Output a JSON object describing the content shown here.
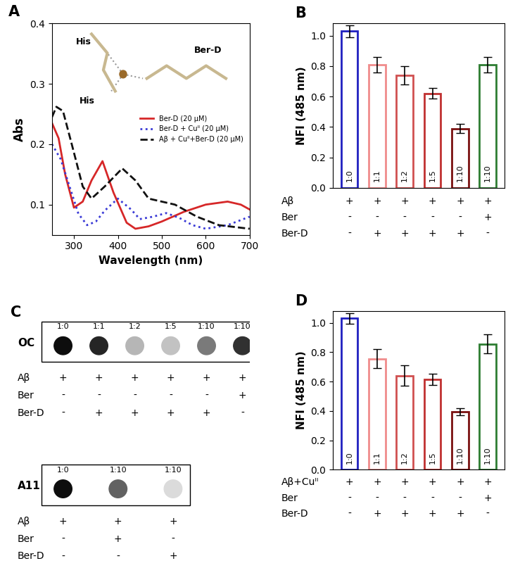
{
  "chart_data": [
    {
      "type": "line",
      "title": "A",
      "x_label": "Wavelength (nm)",
      "y_label": "Abs",
      "xlim": [
        250,
        700
      ],
      "xticks": [
        300,
        400,
        500,
        600,
        700
      ],
      "ylim": [
        0.05,
        0.4
      ],
      "yticks": [
        {
          "value": 0.1,
          "label": "0.1"
        },
        {
          "value": 0.2,
          "label": "0.2"
        },
        {
          "value": 0.3,
          "label": "0.3"
        },
        {
          "value": 0.4,
          "label": "0.4"
        }
      ],
      "legend": "center right",
      "annotations": [
        "His",
        "His",
        "Ber-D"
      ],
      "series": [
        {
          "name": "Ber-D (20 µM)",
          "color": "#d62728",
          "line_style": "solid",
          "x": [
            250,
            265,
            280,
            300,
            320,
            340,
            365,
            390,
            420,
            440,
            470,
            500,
            550,
            600,
            650,
            680,
            700
          ],
          "values": [
            0.235,
            0.21,
            0.15,
            0.095,
            0.105,
            0.14,
            0.172,
            0.12,
            0.07,
            0.06,
            0.064,
            0.072,
            0.088,
            0.1,
            0.105,
            0.1,
            0.092
          ]
        },
        {
          "name": "Ber-D + Cuᴵᴵ (20 µM)",
          "color": "#3a3ad6",
          "line_style": "dotted",
          "x": [
            250,
            270,
            290,
            310,
            330,
            350,
            370,
            400,
            430,
            450,
            480,
            510,
            540,
            570,
            600,
            650,
            700
          ],
          "values": [
            0.2,
            0.175,
            0.13,
            0.085,
            0.066,
            0.072,
            0.09,
            0.11,
            0.092,
            0.076,
            0.08,
            0.086,
            0.078,
            0.066,
            0.06,
            0.066,
            0.08
          ]
        },
        {
          "name": "Aβ + Cuᴵᴵ+Ber-D (20 µM)",
          "color": "#111111",
          "line_style": "dashed",
          "x": [
            250,
            260,
            275,
            295,
            320,
            340,
            370,
            410,
            440,
            470,
            500,
            530,
            580,
            630,
            700
          ],
          "values": [
            0.245,
            0.262,
            0.255,
            0.2,
            0.13,
            0.11,
            0.13,
            0.16,
            0.14,
            0.11,
            0.105,
            0.1,
            0.08,
            0.066,
            0.06
          ]
        }
      ]
    },
    {
      "type": "bar",
      "title": "B",
      "y_label": "NFI (485 nm)",
      "tick_labels": "y",
      "categories": [
        "1:0",
        "1:1",
        "1:2",
        "1:5",
        "1:10",
        "1:10"
      ],
      "values": [
        1.03,
        0.81,
        0.74,
        0.62,
        0.39,
        0.81
      ],
      "errors": [
        0.04,
        0.05,
        0.06,
        0.035,
        0.03,
        0.05
      ],
      "colors": [
        "#2020c0",
        "#f08c8c",
        "#d05050",
        "#c03030",
        "#7a1010",
        "#2e7d32"
      ],
      "ylim": [
        0,
        1.08
      ],
      "yticks": [
        {
          "value": 0,
          "label": "0.0"
        },
        {
          "value": 0.2,
          "label": "0.2"
        },
        {
          "value": 0.4,
          "label": "0.4"
        },
        {
          "value": 0.6,
          "label": "0.6"
        },
        {
          "value": 0.8,
          "label": "0.8"
        },
        {
          "value": 1,
          "label": "1.0"
        }
      ],
      "rows": [
        {
          "name": "Aβ",
          "signs": [
            "+",
            "+",
            "+",
            "+",
            "+",
            "+"
          ]
        },
        {
          "name": "Ber",
          "signs": [
            "-",
            "-",
            "-",
            "-",
            "-",
            "+"
          ]
        },
        {
          "name": "Ber-D",
          "signs": [
            "-",
            "+",
            "+",
            "+",
            "+",
            "-"
          ]
        }
      ]
    },
    {
      "type": "dot_blot",
      "title": "C",
      "blots": [
        {
          "name": "OC",
          "categories": [
            "1:0",
            "1:1",
            "1:2",
            "1:5",
            "1:10",
            "1:10"
          ],
          "intensity": [
            1.0,
            0.9,
            0.3,
            0.25,
            0.55,
            0.85
          ],
          "rows": [
            {
              "name": "Aβ",
              "signs": [
                "+",
                "+",
                "+",
                "+",
                "+",
                "+"
              ]
            },
            {
              "name": "Ber",
              "signs": [
                "-",
                "-",
                "-",
                "-",
                "-",
                "+"
              ]
            },
            {
              "name": "Ber-D",
              "signs": [
                "-",
                "+",
                "+",
                "+",
                "+",
                "-"
              ]
            }
          ]
        },
        {
          "name": "A11",
          "categories": [
            "1:0",
            "1:10",
            "1:10"
          ],
          "intensity": [
            1.0,
            0.65,
            0.15
          ],
          "rows": [
            {
              "name": "Aβ",
              "signs": [
                "+",
                "+",
                "+"
              ]
            },
            {
              "name": "Ber",
              "signs": [
                "-",
                "+",
                "-"
              ]
            },
            {
              "name": "Ber-D",
              "signs": [
                "-",
                "-",
                "+"
              ]
            }
          ]
        }
      ]
    },
    {
      "type": "bar",
      "title": "D",
      "y_label": "NFI (485 nm)",
      "tick_labels": "y",
      "categories": [
        "1:0",
        "1:1",
        "1:2",
        "1:5",
        "1:10",
        "1:10"
      ],
      "values": [
        1.03,
        0.755,
        0.64,
        0.615,
        0.395,
        0.855
      ],
      "errors": [
        0.035,
        0.065,
        0.07,
        0.04,
        0.025,
        0.065
      ],
      "colors": [
        "#2020c0",
        "#f08c8c",
        "#d05050",
        "#c03030",
        "#7a1010",
        "#2e7d32"
      ],
      "ylim": [
        0,
        1.08
      ],
      "yticks": [
        {
          "value": 0,
          "label": "0.0"
        },
        {
          "value": 0.2,
          "label": "0.2"
        },
        {
          "value": 0.4,
          "label": "0.4"
        },
        {
          "value": 0.6,
          "label": "0.6"
        },
        {
          "value": 0.8,
          "label": "0.8"
        },
        {
          "value": 1,
          "label": "1.0"
        }
      ],
      "rows": [
        {
          "name": "Aβ+Cuᴵᴵ",
          "signs": [
            "+",
            "+",
            "+",
            "+",
            "+",
            "+"
          ]
        },
        {
          "name": "Ber",
          "signs": [
            "-",
            "-",
            "-",
            "-",
            "-",
            "+"
          ]
        },
        {
          "name": "Ber-D",
          "signs": [
            "-",
            "+",
            "+",
            "+",
            "+",
            "-"
          ]
        }
      ]
    }
  ]
}
